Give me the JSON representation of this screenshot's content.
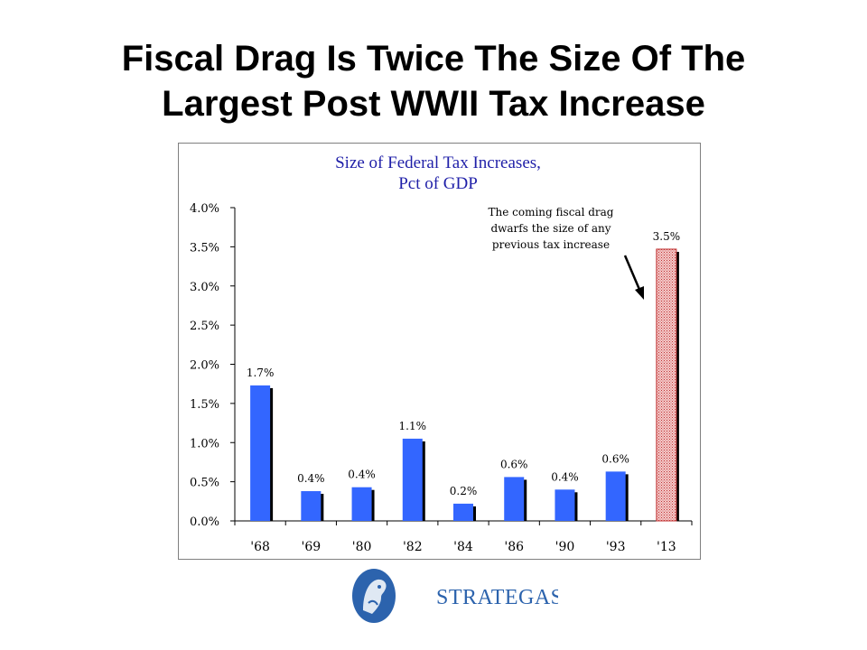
{
  "slide": {
    "title_line1": "Fiscal Drag Is Twice The Size Of The",
    "title_line2": "Largest Post WWII Tax Increase"
  },
  "chart_data": {
    "type": "bar",
    "title_line1": "Size of Federal Tax Increases,",
    "title_line2": "Pct of GDP",
    "categories": [
      "'68",
      "'69",
      "'80",
      "'82",
      "'84",
      "'86",
      "'90",
      "'93",
      "'13"
    ],
    "values": [
      1.73,
      0.38,
      0.43,
      1.05,
      0.22,
      0.56,
      0.4,
      0.63,
      3.47
    ],
    "data_labels": [
      "1.7%",
      "0.4%",
      "0.4%",
      "1.1%",
      "0.2%",
      "0.6%",
      "0.4%",
      "0.6%",
      "3.5%"
    ],
    "ylim": [
      0,
      4.0
    ],
    "y_ticks": [
      0,
      0.5,
      1.0,
      1.5,
      2.0,
      2.5,
      3.0,
      3.5,
      4.0
    ],
    "y_tick_labels": [
      "0.0%",
      "0.5%",
      "1.0%",
      "1.5%",
      "2.0%",
      "2.5%",
      "3.0%",
      "3.5%",
      "4.0%"
    ],
    "grid": false,
    "annotation": {
      "lines": [
        "The coming fiscal drag",
        "dwarfs the size of any",
        "previous tax increase"
      ]
    },
    "colors": {
      "bar": "#3366ff",
      "bar_shadow": "#000000",
      "highlight_bar": "#e8a0a0",
      "title": "#1f1fa8"
    }
  },
  "logo": {
    "text": "STRATEGAS",
    "icon": "strategas-emblem-icon",
    "color": "#2c63ad"
  }
}
